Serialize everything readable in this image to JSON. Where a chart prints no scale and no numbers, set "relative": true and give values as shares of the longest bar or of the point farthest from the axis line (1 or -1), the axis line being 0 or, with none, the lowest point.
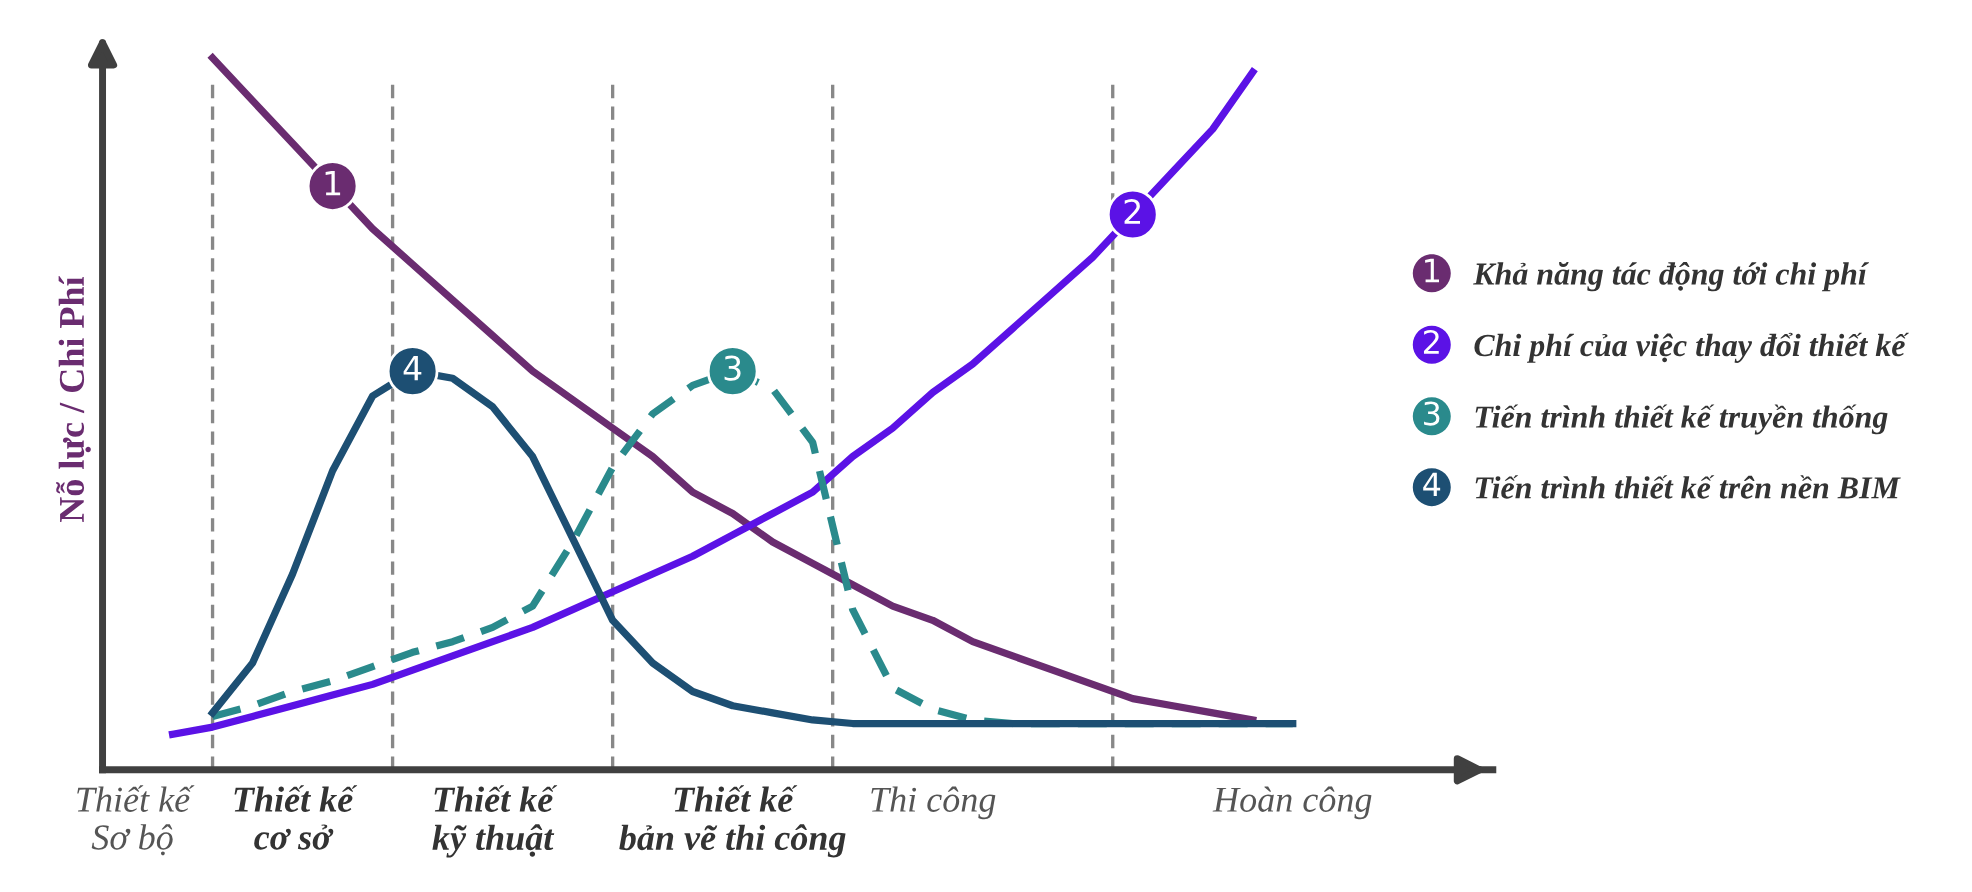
{
  "chart_data": {
    "type": "line",
    "relative": true,
    "ylabel": "Nỗ lực / Chi Phí",
    "categories": [
      "Thiết kế\nSơ bộ",
      null,
      null,
      null,
      "Thiết kế\ncơ sở",
      null,
      null,
      null,
      null,
      "Thiết kế\nkỹ thuật",
      null,
      null,
      null,
      null,
      null,
      "Thiết kế\nbản vẽ thi công",
      null,
      null,
      null,
      null,
      "Thi công",
      null,
      null,
      null,
      null,
      null,
      null,
      null,
      null,
      "Hoàn công",
      null
    ],
    "series": [
      {
        "name": "Khả năng tác động tới chi phí",
        "color": "#6a2c70",
        "values": [
          null,
          null,
          1.0,
          0.94,
          0.88,
          0.82,
          0.76,
          0.71,
          0.66,
          0.61,
          0.56,
          0.52,
          0.48,
          0.44,
          0.39,
          0.36,
          0.32,
          0.29,
          0.26,
          0.23,
          0.21,
          0.18,
          0.16,
          0.14,
          0.12,
          0.1,
          0.09,
          0.08,
          0.07,
          null,
          null
        ]
      },
      {
        "name": "Chi phí của việc thay đổi thiết kế",
        "color": "#5b12e6",
        "values": [
          null,
          0.05,
          0.06,
          0.075,
          0.09,
          0.105,
          0.12,
          0.14,
          0.16,
          0.18,
          0.2,
          0.225,
          0.25,
          0.275,
          0.3,
          0.33,
          0.36,
          0.39,
          0.44,
          0.48,
          0.53,
          0.57,
          0.62,
          0.67,
          0.72,
          0.78,
          0.84,
          0.9,
          0.98,
          null,
          null
        ]
      },
      {
        "name": "Tiến trình thiết kế truyền thống",
        "color": "#2a8a8c",
        "line_style": "dashed",
        "values": [
          null,
          null,
          0.075,
          0.09,
          0.11,
          0.125,
          0.145,
          0.165,
          0.18,
          0.2,
          0.23,
          0.32,
          0.425,
          0.5,
          0.54,
          0.56,
          0.535,
          0.46,
          0.225,
          0.115,
          0.085,
          0.07,
          0.065,
          0.065,
          0.065,
          0.065,
          0.065,
          0.065,
          0.065,
          0.065,
          null
        ]
      },
      {
        "name": "Tiến trình thiết kế trên nền BIM",
        "color": "#1d4f73",
        "values": [
          null,
          null,
          0.08,
          0.15,
          0.275,
          0.42,
          0.525,
          0.56,
          0.55,
          0.51,
          0.44,
          0.325,
          0.21,
          0.15,
          0.11,
          0.09,
          0.08,
          0.07,
          0.065,
          0.065,
          0.065,
          0.065,
          0.065,
          0.065,
          0.065,
          0.065,
          0.065,
          0.065,
          0.065,
          0.065,
          null
        ]
      }
    ],
    "annotations": [
      {
        "text": "1",
        "y": 0.82
      },
      {
        "text": "2",
        "y": 0.78
      },
      {
        "text": "3",
        "y": 0.56
      },
      {
        "text": "4",
        "y": 0.56
      }
    ],
    "grid": "x",
    "legend": "right",
    "marker": "none",
    "line_style": "solid"
  }
}
